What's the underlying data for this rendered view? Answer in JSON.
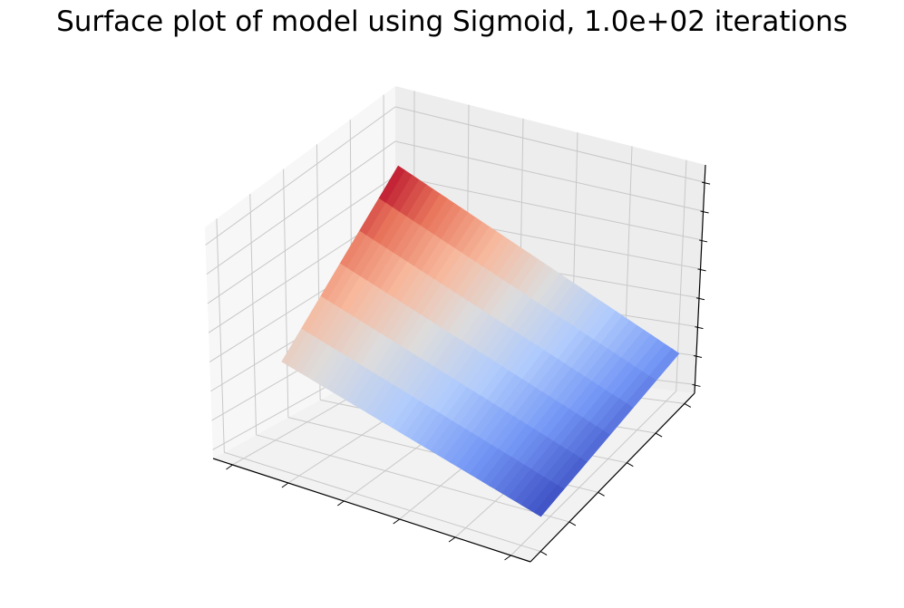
{
  "title": "Surface plot of model using Sigmoid, 1.0e+02 iterations",
  "chart_data": {
    "type": "surface3d",
    "title": "Surface plot of model using Sigmoid, 1.0e+02 iterations",
    "colormap": "coolwarm",
    "colormap_stops": [
      "#3b4cc0",
      "#7396f5",
      "#b0cbfc",
      "#dddcdc",
      "#f7b89c",
      "#e7745b",
      "#b40426"
    ],
    "tick_labels_visible": false,
    "grid": true,
    "x_ticks": 6,
    "y_ticks": 6,
    "z_ticks": 8,
    "surface_corners_z": {
      "x0_y0": 1.0,
      "x1_y0": 0.15,
      "x0_y1": 0.53,
      "x1_y1": 0.0
    },
    "surface_z_range": [
      0.0,
      1.0
    ]
  }
}
